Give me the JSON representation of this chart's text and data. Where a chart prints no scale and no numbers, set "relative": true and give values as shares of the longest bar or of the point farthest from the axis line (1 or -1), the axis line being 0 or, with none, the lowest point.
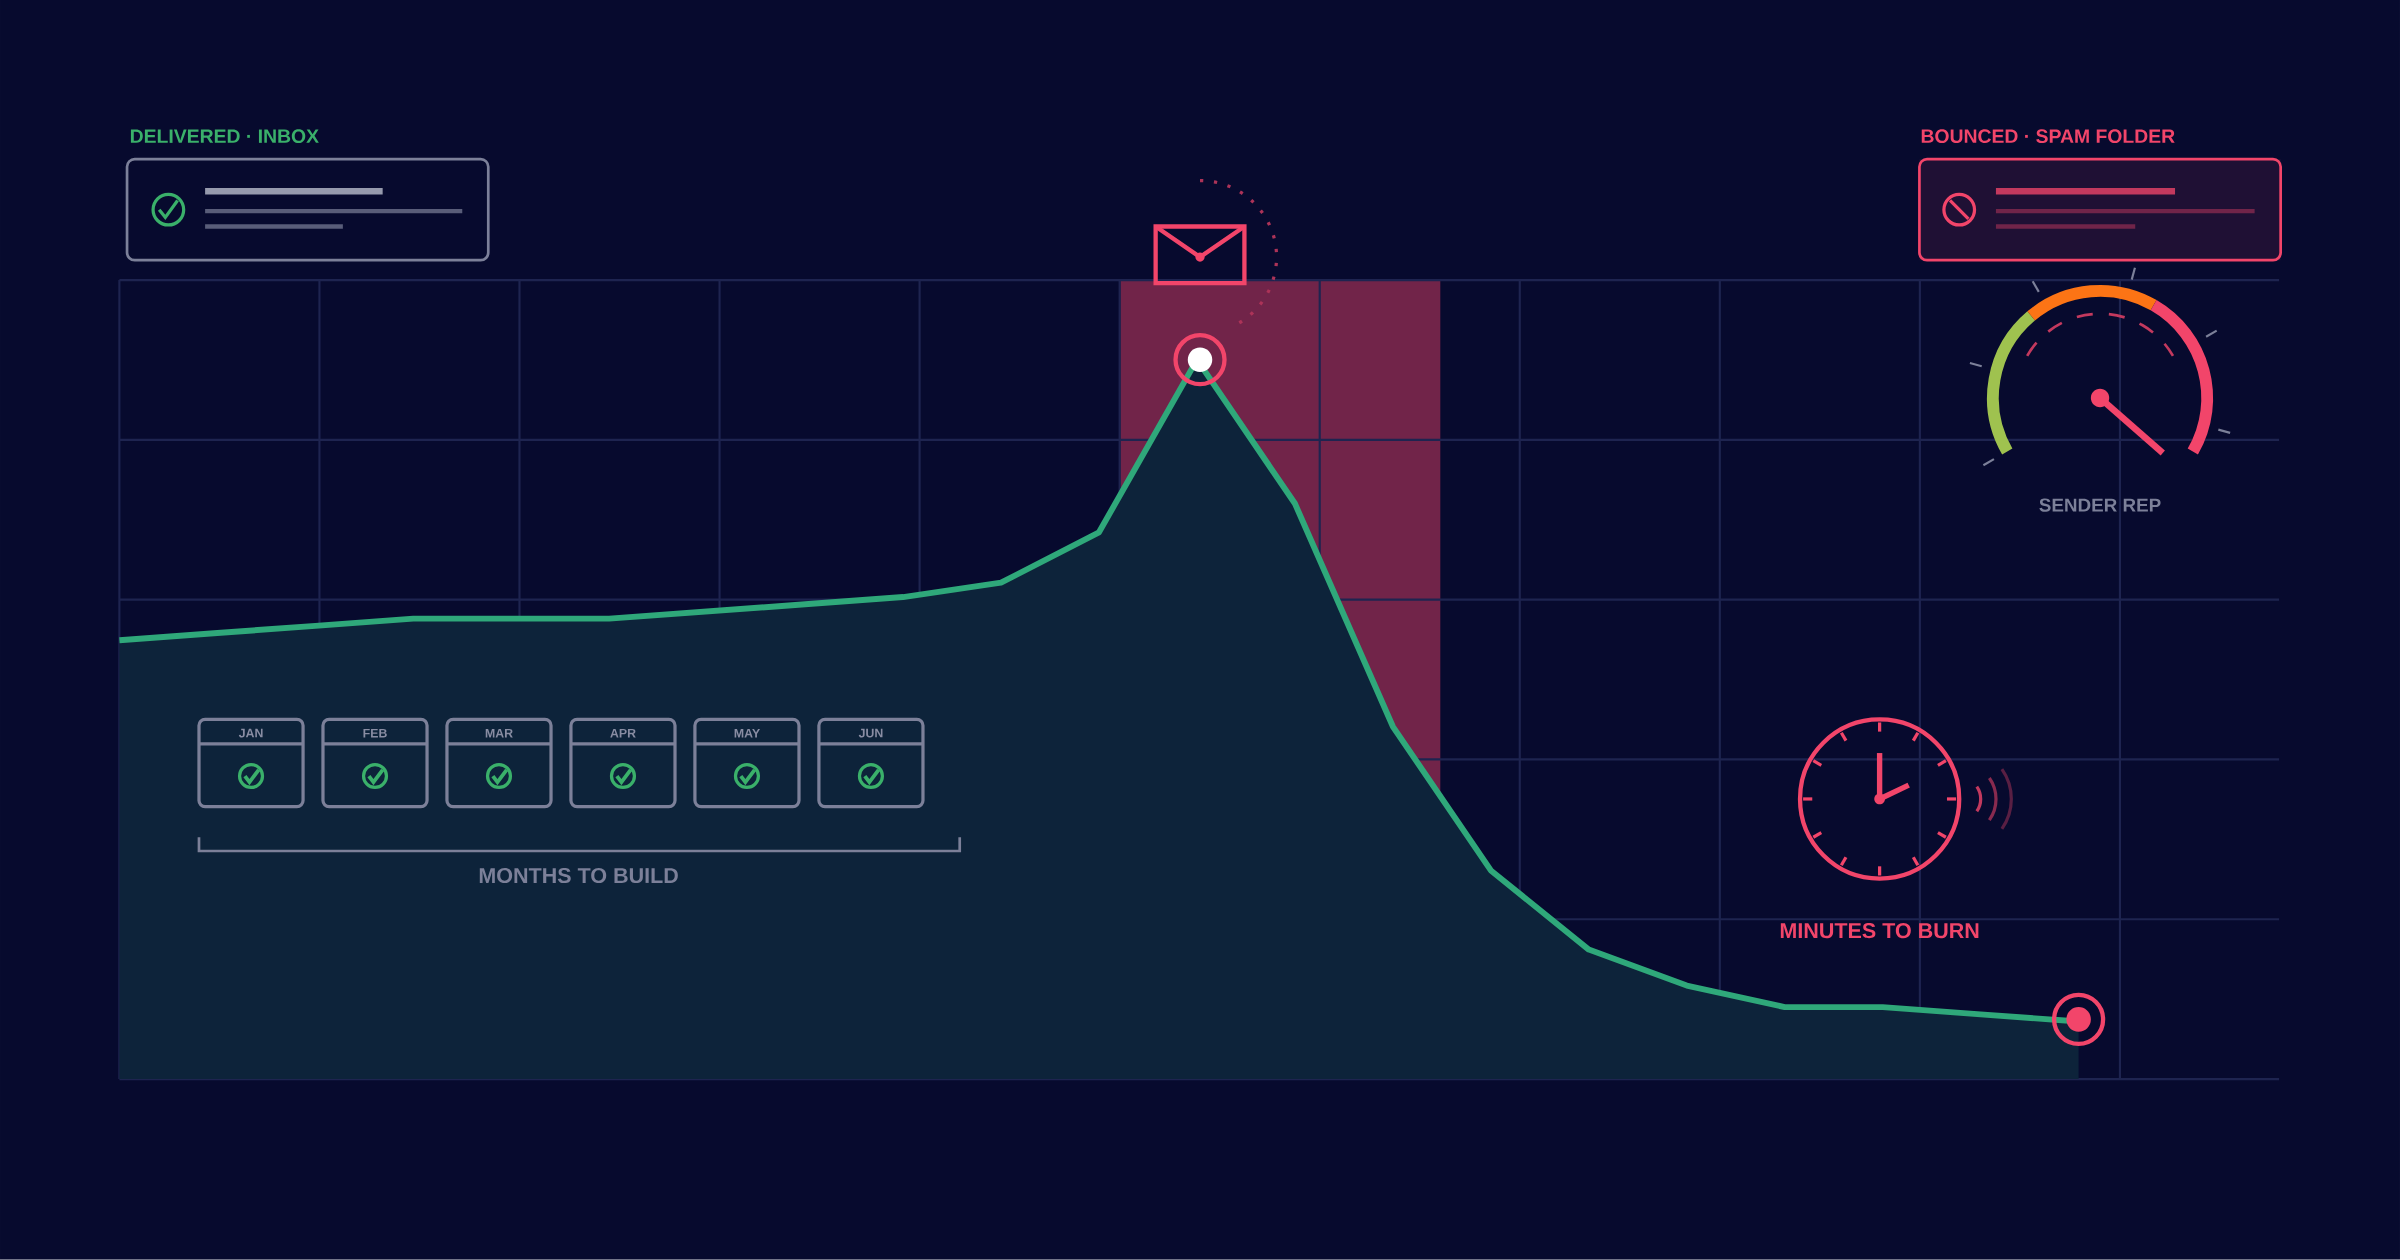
{
  "chart_data": {
    "type": "area",
    "relative": true,
    "grid": true,
    "color": "#2fa87a",
    "categories": [
      null,
      null,
      null,
      null,
      null,
      null,
      null,
      null,
      null,
      null,
      null,
      null,
      null,
      null,
      null,
      null,
      null,
      null,
      null,
      null,
      null
    ],
    "values": [
      0.61,
      0.62,
      0.63,
      0.64,
      0.64,
      0.64,
      0.65,
      0.66,
      0.67,
      0.69,
      0.76,
      1,
      0.8,
      0.49,
      0.29,
      0.18,
      0.13,
      0.1,
      0.1,
      0.09,
      0.08
    ],
    "annotations": [
      "DELIVERED · INBOX",
      "BOUNCED · SPAM FOLDER",
      "SENDER REP",
      "MONTHS TO BUILD",
      "MINUTES TO BURN",
      "JAN",
      "FEB",
      "MAR",
      "APR",
      "MAY",
      "JUN"
    ]
  }
}
